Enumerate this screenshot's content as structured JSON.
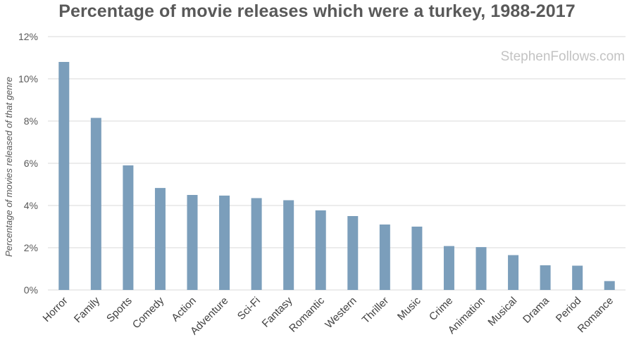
{
  "chart_data": {
    "type": "bar",
    "title": "Percentage of movie releases which were a turkey, 1988-2017",
    "xlabel": "",
    "ylabel": "Percentage of movies released of that genre",
    "watermark": "StephenFollows.com",
    "ylim": [
      0,
      12
    ],
    "yticks": [
      0,
      2,
      4,
      6,
      8,
      10,
      12
    ],
    "ytick_labels": [
      "0%",
      "2%",
      "4%",
      "6%",
      "8%",
      "10%",
      "12%"
    ],
    "grid": true,
    "legend": "none",
    "bar_color": "#7b9ebb",
    "grid_color": "#d9d9d9",
    "categories": [
      "Horror",
      "Family",
      "Sports",
      "Comedy",
      "Action",
      "Adventure",
      "Sci-Fi",
      "Fantasy",
      "Romantic",
      "Western",
      "Thriller",
      "Music",
      "Crime",
      "Animation",
      "Musical",
      "Drama",
      "Period",
      "Romance"
    ],
    "values": [
      10.8,
      8.15,
      5.9,
      4.83,
      4.5,
      4.47,
      4.35,
      4.25,
      3.77,
      3.5,
      3.1,
      3.0,
      2.08,
      2.03,
      1.65,
      1.17,
      1.15,
      0.42
    ]
  }
}
